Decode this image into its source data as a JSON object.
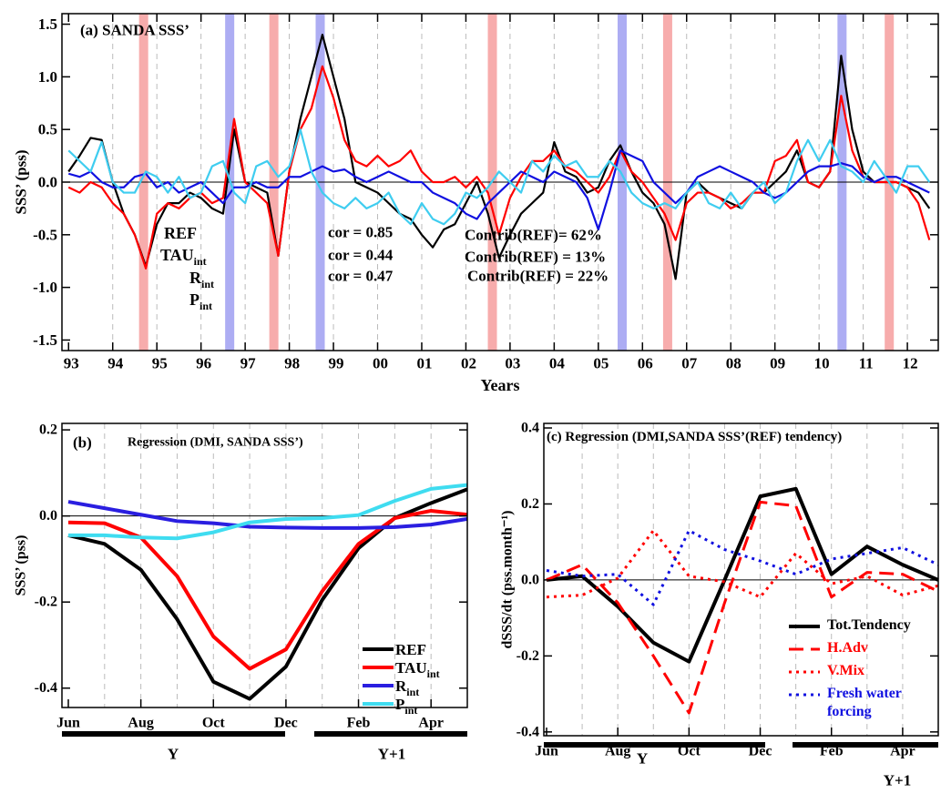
{
  "chart_data": [
    {
      "type": "line",
      "title": "(a) SANDA SSS’",
      "xlabel": "Years",
      "ylabel": "SSS’ (pss)",
      "x": [
        1993,
        1993.25,
        1993.5,
        1993.75,
        1994,
        1994.25,
        1994.5,
        1994.75,
        1995,
        1995.25,
        1995.5,
        1995.75,
        1996,
        1996.25,
        1996.5,
        1996.75,
        1997,
        1997.25,
        1997.5,
        1997.75,
        1998,
        1998.25,
        1998.5,
        1998.75,
        1999,
        1999.25,
        1999.5,
        1999.75,
        2000,
        2000.25,
        2000.5,
        2000.75,
        2001,
        2001.25,
        2001.5,
        2001.75,
        2002,
        2002.25,
        2002.5,
        2002.75,
        2003,
        2003.25,
        2003.5,
        2003.75,
        2004,
        2004.25,
        2004.5,
        2004.75,
        2005,
        2005.25,
        2005.5,
        2005.75,
        2006,
        2006.25,
        2006.5,
        2006.75,
        2007,
        2007.25,
        2007.5,
        2007.75,
        2008,
        2008.25,
        2008.5,
        2008.75,
        2009,
        2009.25,
        2009.5,
        2009.75,
        2010,
        2010.25,
        2010.5,
        2010.75,
        2011,
        2011.25,
        2011.5,
        2011.75,
        2012,
        2012.25,
        2012.5
      ],
      "xlim": [
        1992.85,
        2012.7
      ],
      "xticks": [
        {
          "value": 1993,
          "label": "93"
        },
        {
          "value": 1994,
          "label": "94"
        },
        {
          "value": 1995,
          "label": "95"
        },
        {
          "value": 1996,
          "label": "96"
        },
        {
          "value": 1997,
          "label": "97"
        },
        {
          "value": 1998,
          "label": "98"
        },
        {
          "value": 1999,
          "label": "99"
        },
        {
          "value": 2000,
          "label": "00"
        },
        {
          "value": 2001,
          "label": "01"
        },
        {
          "value": 2002,
          "label": "02"
        },
        {
          "value": 2003,
          "label": "03"
        },
        {
          "value": 2004,
          "label": "04"
        },
        {
          "value": 2005,
          "label": "05"
        },
        {
          "value": 2006,
          "label": "06"
        },
        {
          "value": 2007,
          "label": "07"
        },
        {
          "value": 2008,
          "label": "08"
        },
        {
          "value": 2009,
          "label": "09"
        },
        {
          "value": 2010,
          "label": "10"
        },
        {
          "value": 2011,
          "label": "11"
        },
        {
          "value": 2012,
          "label": "12"
        }
      ],
      "ylim": [
        -1.6,
        1.6
      ],
      "yticks": [
        1.5,
        {
          "value": 1,
          "label": "1.0"
        },
        0.5,
        {
          "value": 0,
          "label": "0.0"
        },
        -0.5,
        {
          "value": -1,
          "label": "-1.0"
        },
        -1.5
      ],
      "grid": true,
      "bands": [
        {
          "x": 1994.7,
          "color": "#f7a8a8"
        },
        {
          "x": 1997.65,
          "color": "#f7a8a8"
        },
        {
          "x": 2002.6,
          "color": "#f7a8a8"
        },
        {
          "x": 2006.57,
          "color": "#f7a8a8"
        },
        {
          "x": 2011.59,
          "color": "#f7a8a8"
        },
        {
          "x": 1996.65,
          "color": "#a9a9f2"
        },
        {
          "x": 1998.7,
          "color": "#a9a9f2"
        },
        {
          "x": 2005.54,
          "color": "#a9a9f2"
        },
        {
          "x": 2010.52,
          "color": "#a9a9f2"
        }
      ],
      "series": [
        {
          "name": "REF",
          "color": "#000000",
          "values": [
            0.1,
            0.25,
            0.42,
            0.4,
            0.0,
            -0.3,
            -0.5,
            -0.8,
            -0.4,
            -0.2,
            -0.2,
            -0.1,
            -0.15,
            -0.25,
            -0.3,
            0.5,
            0.0,
            -0.05,
            -0.1,
            -0.7,
            0.1,
            0.6,
            1.0,
            1.4,
            1.0,
            0.6,
            0.0,
            -0.05,
            -0.1,
            -0.2,
            -0.3,
            -0.35,
            -0.5,
            -0.62,
            -0.45,
            -0.4,
            -0.2,
            0.0,
            -0.3,
            -0.72,
            -0.5,
            -0.3,
            -0.2,
            -0.1,
            0.38,
            0.1,
            0.05,
            -0.1,
            -0.05,
            0.2,
            0.35,
            0.1,
            -0.1,
            -0.2,
            -0.4,
            -0.92,
            -0.1,
            0.0,
            -0.1,
            -0.15,
            -0.2,
            -0.25,
            -0.1,
            -0.1,
            0.0,
            0.1,
            0.3,
            0.0,
            -0.05,
            0.1,
            1.2,
            0.5,
            0.1,
            0.0,
            0.0,
            0.0,
            -0.05,
            -0.1,
            -0.25
          ]
        },
        {
          "name": "TAU",
          "subscript": "int",
          "color": "#ff0000",
          "values": [
            -0.05,
            -0.1,
            0.0,
            -0.05,
            -0.2,
            -0.3,
            -0.5,
            -0.82,
            -0.3,
            -0.2,
            -0.25,
            -0.15,
            -0.1,
            -0.2,
            -0.15,
            0.6,
            0.0,
            -0.1,
            -0.2,
            -0.7,
            0.1,
            0.5,
            0.7,
            1.1,
            0.8,
            0.4,
            0.2,
            0.15,
            0.25,
            0.15,
            0.2,
            0.3,
            0.1,
            0.0,
            0.0,
            0.05,
            -0.05,
            0.05,
            -0.1,
            -0.5,
            -0.15,
            0.05,
            0.2,
            0.2,
            0.3,
            0.15,
            0.1,
            0.0,
            -0.1,
            0.05,
            0.3,
            0.1,
            0.0,
            -0.15,
            -0.3,
            -0.55,
            -0.2,
            -0.1,
            -0.1,
            -0.15,
            -0.25,
            -0.2,
            -0.1,
            -0.1,
            0.2,
            0.25,
            0.4,
            0.0,
            -0.05,
            0.1,
            0.82,
            0.3,
            0.05,
            0.0,
            0.0,
            0.0,
            -0.05,
            -0.2,
            -0.55
          ]
        },
        {
          "name": "R",
          "subscript": "int",
          "color": "#1010e0",
          "values": [
            0.08,
            0.05,
            0.1,
            0.0,
            -0.05,
            -0.05,
            0.05,
            0.08,
            -0.05,
            0.0,
            -0.1,
            -0.05,
            0.0,
            -0.1,
            -0.2,
            -0.05,
            -0.05,
            0.0,
            -0.05,
            -0.05,
            0.05,
            0.05,
            0.1,
            0.15,
            0.1,
            0.12,
            0.05,
            0.0,
            0.05,
            0.1,
            0.05,
            0.0,
            0.0,
            -0.1,
            -0.15,
            -0.2,
            -0.3,
            -0.35,
            -0.2,
            -0.1,
            0.0,
            0.1,
            0.05,
            0.0,
            0.1,
            0.05,
            0.0,
            -0.15,
            -0.45,
            -0.1,
            0.3,
            0.25,
            0.2,
            0.0,
            -0.1,
            -0.2,
            -0.1,
            0.05,
            0.1,
            0.15,
            0.1,
            0.05,
            0.0,
            -0.1,
            -0.15,
            -0.1,
            0.0,
            0.1,
            0.15,
            0.15,
            0.18,
            0.15,
            0.05,
            0.0,
            0.05,
            0.05,
            0.0,
            -0.05,
            -0.1
          ]
        },
        {
          "name": "P",
          "subscript": "int",
          "color": "#3fcdf0",
          "values": [
            0.3,
            0.2,
            0.1,
            0.38,
            0.0,
            -0.1,
            -0.1,
            0.1,
            0.05,
            -0.1,
            0.05,
            -0.15,
            -0.1,
            0.15,
            0.2,
            -0.1,
            -0.2,
            0.15,
            0.2,
            0.05,
            0.15,
            0.5,
            0.1,
            -0.1,
            -0.2,
            -0.25,
            -0.15,
            -0.25,
            -0.2,
            -0.1,
            -0.3,
            -0.4,
            -0.2,
            -0.35,
            -0.4,
            -0.3,
            -0.1,
            -0.15,
            -0.05,
            0.1,
            0.0,
            -0.1,
            0.2,
            0.1,
            0.25,
            0.15,
            0.2,
            0.05,
            0.05,
            0.2,
            0.1,
            -0.1,
            -0.2,
            -0.25,
            -0.2,
            -0.25,
            -0.1,
            0.0,
            -0.2,
            -0.25,
            -0.1,
            -0.25,
            -0.1,
            0.0,
            -0.2,
            -0.1,
            0.2,
            0.4,
            0.2,
            0.4,
            0.15,
            0.1,
            0.0,
            0.2,
            0.05,
            -0.1,
            0.15,
            0.15,
            0.0
          ]
        }
      ],
      "annotations": [
        {
          "text": "cor = 0.85",
          "color": "#ff0000"
        },
        {
          "text": "cor = 0.44",
          "color": "#1010e0"
        },
        {
          "text": "cor = 0.47",
          "color": "#3fcdf0"
        },
        {
          "text": "Contrib(REF)= 62%",
          "color": "#ff0000"
        },
        {
          "text": "Contrib(REF) = 13%",
          "color": "#1010e0"
        },
        {
          "text": "Contrib(REF) = 22%",
          "color": "#3fcdf0"
        }
      ]
    },
    {
      "type": "line",
      "label": "(b)",
      "title": "Regression (DMI, SANDA SSS’)",
      "ylabel": "SSS’ (pss)",
      "categories": [
        "Jun",
        null,
        "Aug",
        null,
        "Oct",
        null,
        "Dec",
        null,
        "Feb",
        null,
        "Apr",
        null
      ],
      "periods": [
        "Y",
        "Y+1"
      ],
      "ylim": [
        -0.445,
        0.215
      ],
      "yticks": [
        0.2,
        {
          "value": 0,
          "label": "0.0"
        },
        -0.2,
        -0.4
      ],
      "grid": true,
      "legend": "lower right",
      "series": [
        {
          "name": "REF",
          "color": "#000000",
          "values": [
            -0.045,
            -0.065,
            -0.125,
            -0.24,
            -0.385,
            -0.425,
            -0.35,
            -0.195,
            -0.075,
            -0.005,
            0.03,
            0.062
          ]
        },
        {
          "name": "TAU",
          "subscript": "int",
          "color": "#ff0000",
          "values": [
            -0.015,
            -0.017,
            -0.05,
            -0.14,
            -0.28,
            -0.355,
            -0.31,
            -0.175,
            -0.065,
            -0.005,
            0.012,
            0.003
          ]
        },
        {
          "name": "R",
          "subscript": "int",
          "color": "#2a1ee0",
          "values": [
            0.033,
            0.018,
            0.003,
            -0.012,
            -0.017,
            -0.025,
            -0.027,
            -0.028,
            -0.028,
            -0.026,
            -0.02,
            -0.007
          ]
        },
        {
          "name": "P",
          "subscript": "int",
          "color": "#3fdcf0",
          "values": [
            -0.045,
            -0.045,
            -0.05,
            -0.052,
            -0.038,
            -0.015,
            -0.007,
            -0.005,
            0.002,
            0.035,
            0.063,
            0.072
          ]
        }
      ]
    },
    {
      "type": "line",
      "title": "(c) Regression (DMI,SANDA SSS’(REF) tendency)",
      "ylabel": "dSSS/dt (pss.month⁻¹)",
      "categories": [
        "Jun",
        null,
        "Aug",
        null,
        "Oct",
        null,
        "Dec",
        null,
        "Feb",
        null,
        "Apr",
        null
      ],
      "periods": [
        "Y",
        "Y+1"
      ],
      "ylim": [
        -0.41,
        0.412
      ],
      "yticks": [
        0.4,
        0.2,
        {
          "value": 0,
          "label": "0.0"
        },
        -0.2,
        -0.4
      ],
      "grid": true,
      "legend": "lower right",
      "series": [
        {
          "name": "Tot.Tendency",
          "color": "#000000",
          "style": "solid",
          "values": [
            0.0,
            0.01,
            -0.07,
            -0.165,
            -0.215,
            0.0,
            0.22,
            0.24,
            0.015,
            0.088,
            0.04,
            0.0
          ]
        },
        {
          "name": "H.Adv",
          "color": "#ff0000",
          "style": "dashed",
          "values": [
            0.0,
            0.04,
            -0.06,
            -0.2,
            -0.35,
            -0.06,
            0.205,
            0.195,
            -0.045,
            0.02,
            0.015,
            -0.03
          ]
        },
        {
          "name": "V.Mix",
          "color": "#ff0000",
          "style": "dotted",
          "values": [
            -0.045,
            -0.04,
            0.005,
            0.13,
            0.01,
            -0.005,
            -0.045,
            0.07,
            -0.01,
            0.01,
            -0.04,
            -0.015
          ]
        },
        {
          "name": "Fresh water forcing",
          "color": "#1010e0",
          "style": "dotted",
          "values": [
            0.025,
            0.01,
            0.015,
            -0.065,
            0.13,
            0.08,
            0.05,
            0.015,
            0.055,
            0.07,
            0.085,
            0.04
          ]
        }
      ]
    }
  ]
}
